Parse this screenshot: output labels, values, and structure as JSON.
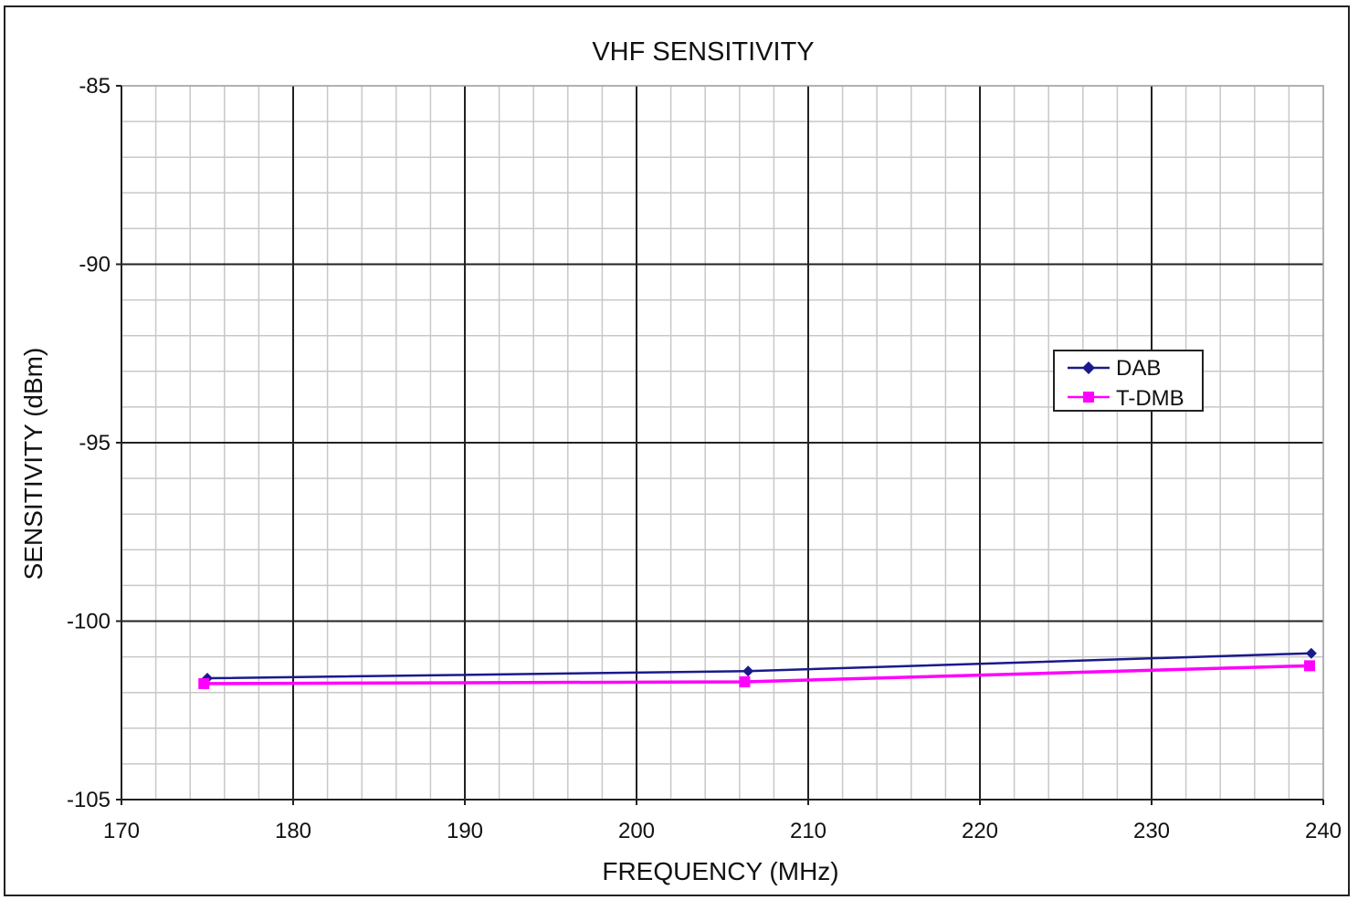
{
  "chart_data": {
    "type": "line",
    "title": "VHF SENSITIVITY",
    "xlabel": "FREQUENCY (MHz)",
    "ylabel": "SENSITIVITY (dBm)",
    "xlim": [
      170,
      240
    ],
    "ylim": [
      -105,
      -85
    ],
    "x_ticks": [
      "170",
      "180",
      "190",
      "200",
      "210",
      "220",
      "230",
      "240"
    ],
    "y_ticks": [
      "-85",
      "-90",
      "-95",
      "-100",
      "-105"
    ],
    "grid": true,
    "legend": "right",
    "series": [
      {
        "name": "DAB",
        "color": "#1a1a8c",
        "marker": "diamond",
        "x": [
          175,
          206.5,
          239.3
        ],
        "y": [
          -101.6,
          -101.4,
          -100.9
        ]
      },
      {
        "name": "T-DMB",
        "color": "#ff00ff",
        "marker": "square",
        "x": [
          174.8,
          206.3,
          239.2
        ],
        "y": [
          -101.75,
          -101.7,
          -101.25
        ]
      }
    ]
  }
}
